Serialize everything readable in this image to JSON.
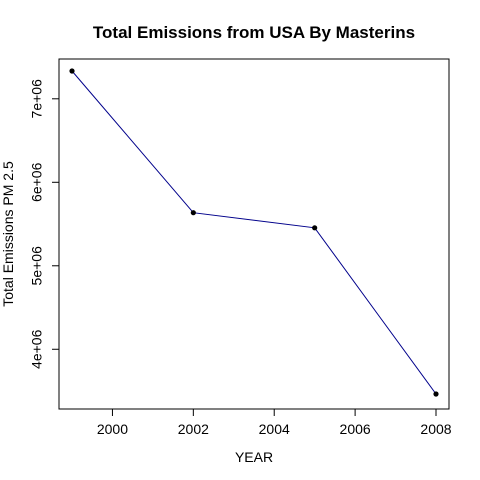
{
  "chart_data": {
    "type": "line",
    "title": "Total Emissions from USA By Masterins",
    "xlabel": "YEAR",
    "ylabel": "Total Emissions PM 2.5",
    "x": [
      1999,
      2002,
      2005,
      2008
    ],
    "series": [
      {
        "values": [
          7332967,
          5635780,
          5454703,
          3464206
        ]
      }
    ],
    "xlim": [
      1999,
      2008
    ],
    "ylim": [
      3464206,
      7332967
    ],
    "xticks": [
      2000,
      2002,
      2004,
      2006,
      2008
    ],
    "xtick_labels": [
      "2000",
      "2002",
      "2004",
      "2006",
      "2008"
    ],
    "yticks": [
      4000000,
      5000000,
      6000000,
      7000000
    ],
    "ytick_labels": [
      "4e+06",
      "5e+06",
      "6e+06",
      "7e+06"
    ],
    "grid": false,
    "line_color": "#00008b",
    "point_color": "#000000"
  }
}
